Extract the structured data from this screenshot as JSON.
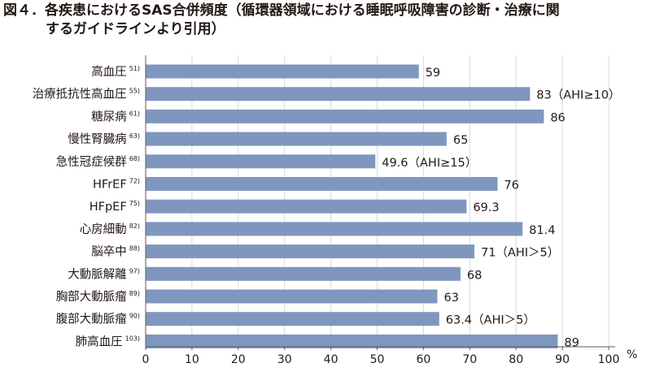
{
  "title": {
    "line1": "図４．各疾患におけるSAS合併頻度（循環器領域における睡眠呼吸障害の診断・治療に関",
    "line2": "するガイドラインより引用）"
  },
  "colors": {
    "bar": "#7f97bf",
    "grid": "#d9d9d9",
    "axis": "#595959"
  },
  "chart_data": {
    "type": "bar",
    "orientation": "horizontal",
    "xlim": [
      0,
      100
    ],
    "x_ticks": [
      "0",
      "10",
      "20",
      "30",
      "40",
      "50",
      "60",
      "70",
      "80",
      "90",
      "100"
    ],
    "x_unit": "%",
    "grid": true,
    "categories": [
      {
        "label": "高血圧",
        "ref": "51)",
        "value": 59,
        "value_label": "59"
      },
      {
        "label": "治療抵抗性高血圧",
        "ref": "55)",
        "value": 83,
        "value_label": "83（AHI≥10）"
      },
      {
        "label": "糖尿病",
        "ref": "61)",
        "value": 86,
        "value_label": "86"
      },
      {
        "label": "慢性腎臓病",
        "ref": "63)",
        "value": 65,
        "value_label": "65"
      },
      {
        "label": "急性冠症候群",
        "ref": "68)",
        "value": 49.6,
        "value_label": "49.6（AHI≥15）"
      },
      {
        "label": "HFrEF",
        "ref": "72)",
        "value": 76,
        "value_label": "76"
      },
      {
        "label": "HFpEF",
        "ref": "75)",
        "value": 69.3,
        "value_label": "69.3"
      },
      {
        "label": "心房細動",
        "ref": "82)",
        "value": 81.4,
        "value_label": "81.4"
      },
      {
        "label": "脳卒中",
        "ref": "88)",
        "value": 71,
        "value_label": "71（AHI＞5）"
      },
      {
        "label": "大動脈解離",
        "ref": "97)",
        "value": 68,
        "value_label": "68"
      },
      {
        "label": "胸部大動脈瘤",
        "ref": "89)",
        "value": 63,
        "value_label": "63"
      },
      {
        "label": "腹部大動脈瘤",
        "ref": "90)",
        "value": 63.4,
        "value_label": "63.4（AHI＞5）"
      },
      {
        "label": "肺高血圧",
        "ref": "103)",
        "value": 89,
        "value_label": "89"
      }
    ]
  }
}
